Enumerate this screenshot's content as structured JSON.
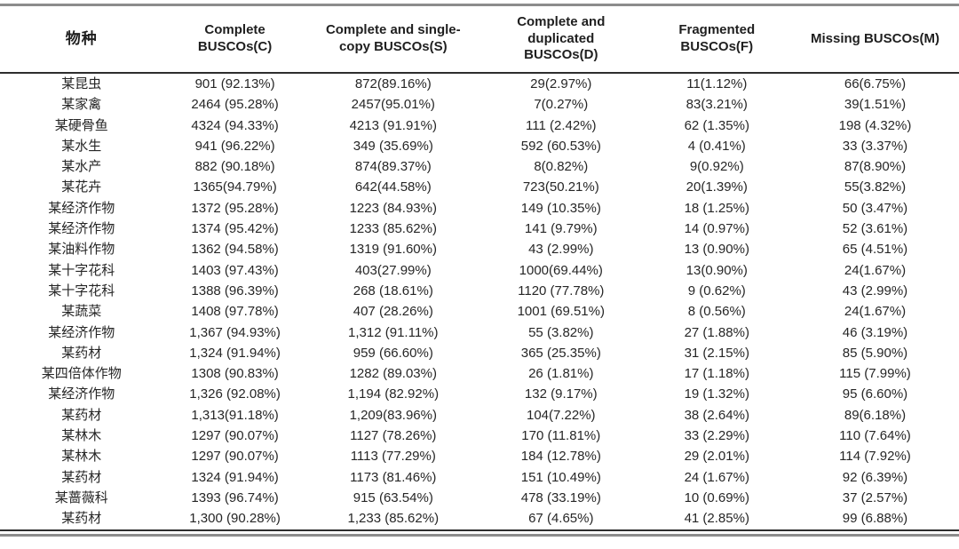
{
  "page": {
    "background": "#ffffff",
    "text_color": "#262626",
    "header_text_color": "#1f1f1f",
    "top_rule_color": "#8c8c8c",
    "header_rule_color": "#2e2e2e",
    "bottom_rule_dark_color": "#2e2e2e",
    "bottom_rule_gray_color": "#8c8c8c"
  },
  "table": {
    "headers": [
      "物种",
      "Complete BUSCOs(C)",
      "Complete and single-copy BUSCOs(S)",
      "Complete and duplicated BUSCOs(D)",
      "Fragmented BUSCOs(F)",
      "Missing BUSCOs(M)"
    ],
    "rows": [
      [
        "某昆虫",
        "901 (92.13%)",
        "872(89.16%)",
        "29(2.97%)",
        "11(1.12%)",
        "66(6.75%)"
      ],
      [
        "某家禽",
        "2464 (95.28%)",
        "2457(95.01%)",
        "7(0.27%)",
        "83(3.21%)",
        "39(1.51%)"
      ],
      [
        "某硬骨鱼",
        "4324 (94.33%)",
        "4213 (91.91%)",
        "111 (2.42%)",
        "62 (1.35%)",
        "198 (4.32%)"
      ],
      [
        "某水生",
        "941 (96.22%)",
        "349 (35.69%)",
        "592 (60.53%)",
        "4 (0.41%)",
        "33 (3.37%)"
      ],
      [
        "某水产",
        "882 (90.18%)",
        "874(89.37%)",
        "8(0.82%)",
        "9(0.92%)",
        "87(8.90%)"
      ],
      [
        "某花卉",
        "1365(94.79%)",
        "642(44.58%)",
        "723(50.21%)",
        "20(1.39%)",
        "55(3.82%)"
      ],
      [
        "某经济作物",
        "1372 (95.28%)",
        "1223 (84.93%)",
        "149 (10.35%)",
        "18 (1.25%)",
        "50 (3.47%)"
      ],
      [
        "某经济作物",
        "1374 (95.42%)",
        "1233 (85.62%)",
        "141 (9.79%)",
        "14 (0.97%)",
        "52 (3.61%)"
      ],
      [
        "某油料作物",
        "1362 (94.58%)",
        "1319 (91.60%)",
        "43 (2.99%)",
        "13 (0.90%)",
        "65 (4.51%)"
      ],
      [
        "某十字花科",
        "1403 (97.43%)",
        "403(27.99%)",
        "1000(69.44%)",
        "13(0.90%)",
        "24(1.67%)"
      ],
      [
        "某十字花科",
        "1388 (96.39%)",
        "268 (18.61%)",
        "1120 (77.78%)",
        "9 (0.62%)",
        "43 (2.99%)"
      ],
      [
        "某蔬菜",
        "1408 (97.78%)",
        "407 (28.26%)",
        "1001 (69.51%)",
        "8 (0.56%)",
        "24(1.67%)"
      ],
      [
        "某经济作物",
        "1,367 (94.93%)",
        "1,312 (91.11%)",
        "55 (3.82%)",
        "27 (1.88%)",
        "46 (3.19%)"
      ],
      [
        "某药材",
        "1,324 (91.94%)",
        "959 (66.60%)",
        "365 (25.35%)",
        "31 (2.15%)",
        "85 (5.90%)"
      ],
      [
        "某四倍体作物",
        "1308 (90.83%)",
        "1282 (89.03%)",
        "26 (1.81%)",
        "17 (1.18%)",
        "115 (7.99%)"
      ],
      [
        "某经济作物",
        "1,326 (92.08%)",
        "1,194 (82.92%)",
        "132 (9.17%)",
        "19 (1.32%)",
        "95 (6.60%)"
      ],
      [
        "某药材",
        "1,313(91.18%)",
        "1,209(83.96%)",
        "104(7.22%)",
        "38 (2.64%)",
        "89(6.18%)"
      ],
      [
        "某林木",
        "1297 (90.07%)",
        "1127 (78.26%)",
        "170 (11.81%)",
        "33 (2.29%)",
        "110 (7.64%)"
      ],
      [
        "某林木",
        "1297 (90.07%)",
        "1113 (77.29%)",
        "184 (12.78%)",
        "29 (2.01%)",
        "114 (7.92%)"
      ],
      [
        "某药材",
        "1324 (91.94%)",
        "1173 (81.46%)",
        "151 (10.49%)",
        "24 (1.67%)",
        "92 (6.39%)"
      ],
      [
        "某蔷薇科",
        "1393 (96.74%)",
        "915 (63.54%)",
        "478 (33.19%)",
        "10 (0.69%)",
        "37 (2.57%)"
      ],
      [
        "某药材",
        "1,300 (90.28%)",
        "1,233 (85.62%)",
        "67 (4.65%)",
        "41 (2.85%)",
        "99 (6.88%)"
      ]
    ]
  }
}
